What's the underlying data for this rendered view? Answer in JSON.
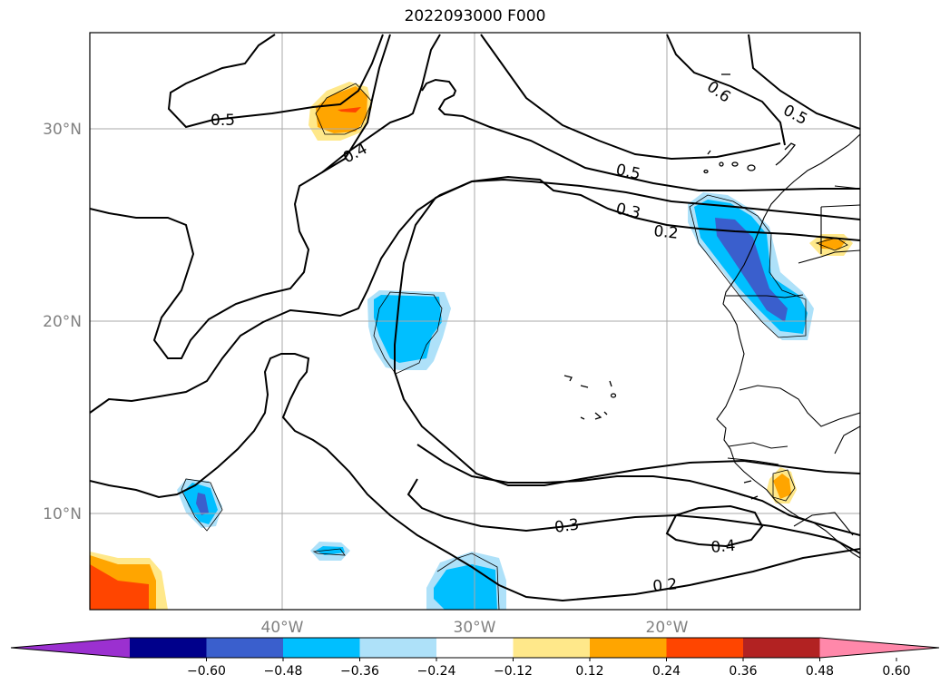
{
  "title": "2022093000 F000",
  "map": {
    "lat_ticks": [
      "30°N",
      "20°N",
      "10°N"
    ],
    "lon_ticks": [
      "40°W",
      "30°W",
      "20°W"
    ],
    "contour_labels": [
      "0.5",
      "0.4",
      "0.6",
      "0.5",
      "0.5",
      "0.3",
      "0.2",
      "0.3",
      "0.4",
      "0.2"
    ],
    "gridlines": true
  },
  "colorbar": {
    "ticks": [
      "−0.60",
      "−0.48",
      "−0.36",
      "−0.24",
      "−0.12",
      "0.12",
      "0.24",
      "0.36",
      "0.48",
      "0.60"
    ],
    "colors": [
      "#9b30d0",
      "#00008b",
      "#3a5fcd",
      "#00bfff",
      "#aee1f9",
      "#ffffff",
      "#ffe88a",
      "#ffa500",
      "#ff4500",
      "#b22222",
      "#ff88aa"
    ],
    "extend": "both"
  }
}
